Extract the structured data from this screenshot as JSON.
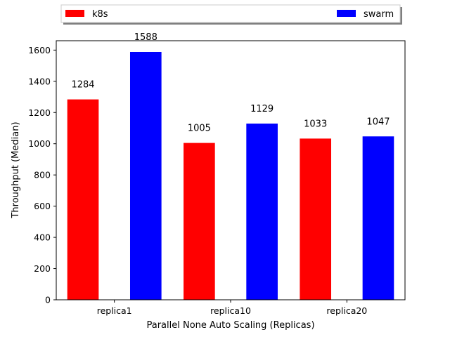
{
  "chart_data": {
    "type": "bar",
    "title": "",
    "xlabel": "Parallel None Auto Scaling (Replicas)",
    "ylabel": "Throughput (Median)",
    "categories": [
      "replica1",
      "replica10",
      "replica20"
    ],
    "series": [
      {
        "name": "k8s",
        "color": "#ff0000",
        "values": [
          1284,
          1005,
          1033
        ]
      },
      {
        "name": "swarm",
        "color": "#0000ff",
        "values": [
          1588,
          1129,
          1047
        ]
      }
    ],
    "ylim": [
      0,
      1660
    ],
    "yticks": [
      0,
      200,
      400,
      600,
      800,
      1000,
      1200,
      1400,
      1600
    ],
    "grid": false,
    "legend_position": "top, outside plot, two columns"
  }
}
